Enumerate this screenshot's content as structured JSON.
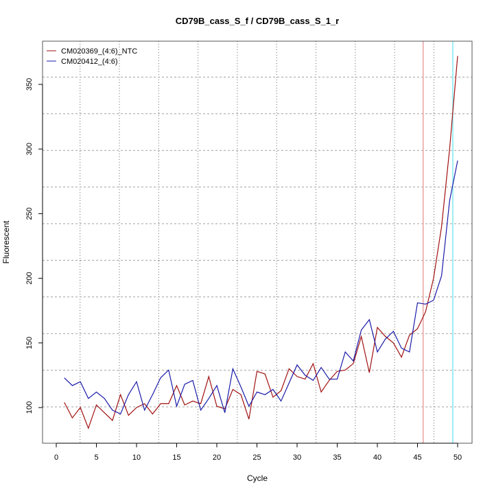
{
  "chart_data": {
    "type": "line",
    "title": "CD79B_cass_S_f / CD79B_cass_S_1_r",
    "xlabel": "Cycle",
    "ylabel": "Fluorescent",
    "xlim": [
      -2,
      52
    ],
    "ylim": [
      72,
      386
    ],
    "xticks": [
      0,
      5,
      10,
      15,
      20,
      25,
      30,
      35,
      40,
      45,
      50
    ],
    "yticks": [
      100,
      150,
      200,
      250,
      300,
      350
    ],
    "legend_position": "top-left",
    "colors": {
      "red": "#a01010",
      "blue": "#1a1aa8",
      "threshold_red": "#e8a0a0",
      "threshold_cyan": "#80e8f0",
      "grid": "#a0a0a0"
    },
    "threshold_lines_cycle": [
      45.7,
      49.4
    ],
    "x": [
      1,
      2,
      3,
      4,
      5,
      6,
      7,
      8,
      9,
      10,
      11,
      12,
      13,
      14,
      15,
      16,
      17,
      18,
      19,
      20,
      21,
      22,
      23,
      24,
      25,
      26,
      27,
      28,
      29,
      30,
      31,
      32,
      33,
      34,
      35,
      36,
      37,
      38,
      39,
      40,
      41,
      42,
      43,
      44,
      45,
      46,
      47,
      48,
      49,
      50
    ],
    "series": [
      {
        "name": "CM020369_(4:6)_NTC",
        "color": "#a01010",
        "values": [
          104,
          92,
          100,
          84,
          102,
          96,
          90,
          110,
          94,
          100,
          103,
          95,
          103,
          103,
          117,
          102,
          105,
          103,
          124,
          101,
          99,
          114,
          110,
          91,
          128,
          126,
          108,
          113,
          130,
          124,
          122,
          134,
          112,
          121,
          128,
          129,
          134,
          155,
          127,
          162,
          155,
          150,
          139,
          156,
          161,
          174,
          200,
          240,
          300,
          372
        ]
      },
      {
        "name": "CM020412_(4:6)",
        "color": "#1a1aa8",
        "values": [
          123,
          117,
          120,
          107,
          112,
          107,
          98,
          95,
          110,
          120,
          98,
          110,
          123,
          129,
          101,
          118,
          121,
          98,
          107,
          117,
          96,
          130,
          116,
          101,
          112,
          110,
          114,
          105,
          119,
          133,
          125,
          121,
          131,
          122,
          122,
          143,
          136,
          160,
          168,
          143,
          153,
          159,
          146,
          143,
          181,
          180,
          183,
          202,
          260,
          291
        ]
      }
    ]
  }
}
